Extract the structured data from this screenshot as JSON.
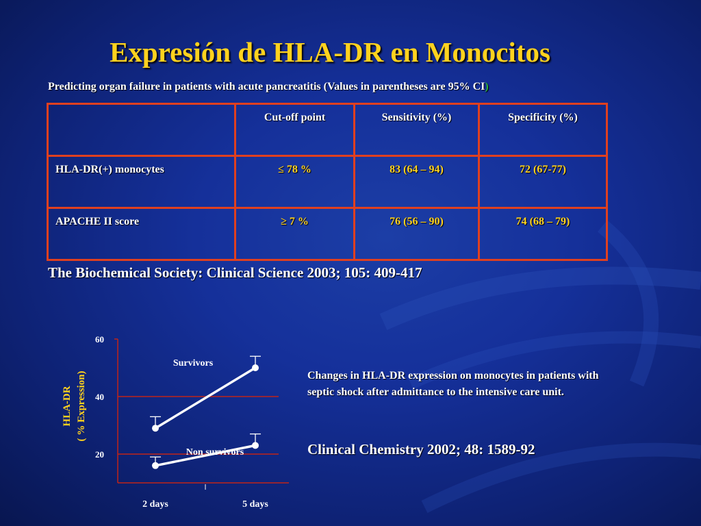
{
  "title": "Expresión de HLA-DR en Monocitos",
  "subtitle": "Predicting organ failure in patients with acute pancreatitis (Values in parentheses are 95% CI",
  "subtitle_close": ")",
  "table": {
    "headers": [
      "",
      "Cut-off point",
      "Sensitivity (%)",
      "Specificity (%)"
    ],
    "rows": [
      {
        "label": "HLA-DR(+) monocytes",
        "cutoff": "≤ 78 %",
        "sensitivity": "83 (64 – 94)",
        "specificity": "72 (67-77)"
      },
      {
        "label": "APACHE II score",
        "cutoff": "≥ 7 %",
        "sensitivity": "76 (56 – 90)",
        "specificity": "74 (68 – 79)"
      }
    ]
  },
  "reference_1": "The Biochemical Society: Clinical Science 2003; 105: 409-417",
  "caption": "Changes in HLA-DR expression on monocytes in patients with septic shock after admittance to the intensive care unit.",
  "reference_2": "Clinical Chemistry 2002; 48: 1589-92",
  "colors": {
    "title": "#ffd21e",
    "table_border": "#e0401f",
    "subtitle_paren": "#2fb53a",
    "reference_line": "#c02418"
  },
  "chart_data": {
    "type": "line",
    "ylabel_line1": "HLA-DR",
    "ylabel_line2": "( % Expression)",
    "categories": [
      "2 days",
      "5 days"
    ],
    "y_ticks": [
      "20",
      "40",
      "60"
    ],
    "ylim": [
      10,
      60
    ],
    "reference_lines": [
      20,
      40
    ],
    "series": [
      {
        "name": "Survivors",
        "values": [
          29,
          50
        ],
        "upper": [
          33,
          54
        ]
      },
      {
        "name": "Non survivors",
        "values": [
          16,
          23
        ],
        "upper": [
          19,
          27
        ]
      }
    ]
  }
}
